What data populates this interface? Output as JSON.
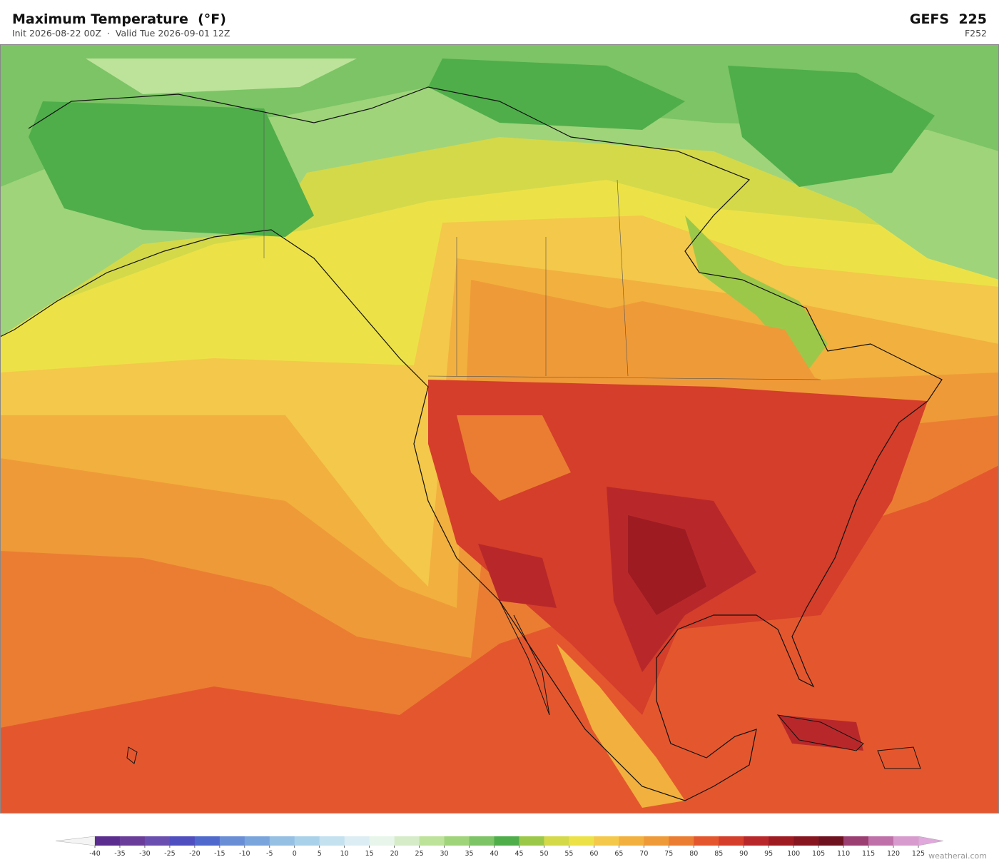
{
  "header": {
    "title": "Maximum Temperature  (°F)",
    "subtitle": "Init 2026-08-22 00Z  ·  Valid Tue 2026-09-01 12Z",
    "model": "GEFS  225",
    "forecast_hour": "F252"
  },
  "colorbar": {
    "ticks": [
      -40,
      -35,
      -30,
      -25,
      -20,
      -15,
      -10,
      -5,
      0,
      5,
      10,
      15,
      20,
      25,
      30,
      35,
      40,
      45,
      50,
      55,
      60,
      65,
      70,
      75,
      80,
      85,
      90,
      95,
      100,
      105,
      110,
      115,
      120,
      125
    ],
    "colors": [
      "#5b2d8e",
      "#6a3d9a",
      "#6a4fb0",
      "#4f4fc0",
      "#4f6acc",
      "#6a8ed6",
      "#7aa5dc",
      "#95bfe3",
      "#a9d2ea",
      "#c4e1ef",
      "#dceef3",
      "#e8f5ea",
      "#d6ecc8",
      "#bde39a",
      "#9fd47a",
      "#7cc465",
      "#4fae4a",
      "#9cc84a",
      "#d4d94a",
      "#ece247",
      "#f4c84a",
      "#f2b03e",
      "#ef9a38",
      "#eb7d33",
      "#e4572e",
      "#d43e2a",
      "#b8282a",
      "#9e1b22",
      "#861520",
      "#6e1220",
      "#9b3f72",
      "#c070a8",
      "#d79ccd"
    ],
    "extend_low_color": "#f4f4f4",
    "extend_high_color": "#e0a8dc"
  },
  "footer": {
    "credit": "weatherai.com"
  }
}
